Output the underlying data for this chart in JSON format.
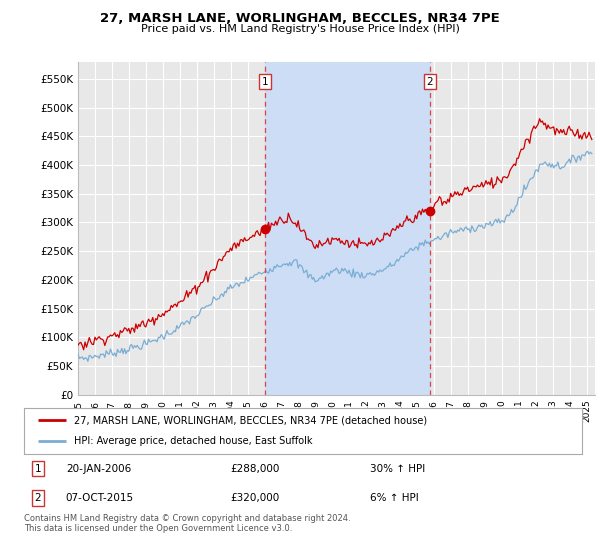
{
  "title": "27, MARSH LANE, WORLINGHAM, BECCLES, NR34 7PE",
  "subtitle": "Price paid vs. HM Land Registry's House Price Index (HPI)",
  "ylabel_ticks": [
    "£0",
    "£50K",
    "£100K",
    "£150K",
    "£200K",
    "£250K",
    "£300K",
    "£350K",
    "£400K",
    "£450K",
    "£500K",
    "£550K"
  ],
  "ytick_values": [
    0,
    50000,
    100000,
    150000,
    200000,
    250000,
    300000,
    350000,
    400000,
    450000,
    500000,
    550000
  ],
  "ylim": [
    0,
    580000
  ],
  "xlim_start": 1995.0,
  "xlim_end": 2025.5,
  "xtick_years": [
    1995,
    1996,
    1997,
    1998,
    1999,
    2000,
    2001,
    2002,
    2003,
    2004,
    2005,
    2006,
    2007,
    2008,
    2009,
    2010,
    2011,
    2012,
    2013,
    2014,
    2015,
    2016,
    2017,
    2018,
    2019,
    2020,
    2021,
    2022,
    2023,
    2024,
    2025
  ],
  "marker1_x": 2006.05,
  "marker1_y": 288000,
  "marker1_label": "1",
  "marker2_x": 2015.76,
  "marker2_y": 320000,
  "marker2_label": "2",
  "legend_line1": "27, MARSH LANE, WORLINGHAM, BECCLES, NR34 7PE (detached house)",
  "legend_line2": "HPI: Average price, detached house, East Suffolk",
  "line_red_color": "#cc0000",
  "line_blue_color": "#7aadd4",
  "background_plot": "#e8e8e8",
  "shade_color": "#ccddf5",
  "background_fig": "#ffffff",
  "grid_color": "#ffffff",
  "vline_color": "#dd4444",
  "footnote": "Contains HM Land Registry data © Crown copyright and database right 2024.\nThis data is licensed under the Open Government Licence v3.0."
}
